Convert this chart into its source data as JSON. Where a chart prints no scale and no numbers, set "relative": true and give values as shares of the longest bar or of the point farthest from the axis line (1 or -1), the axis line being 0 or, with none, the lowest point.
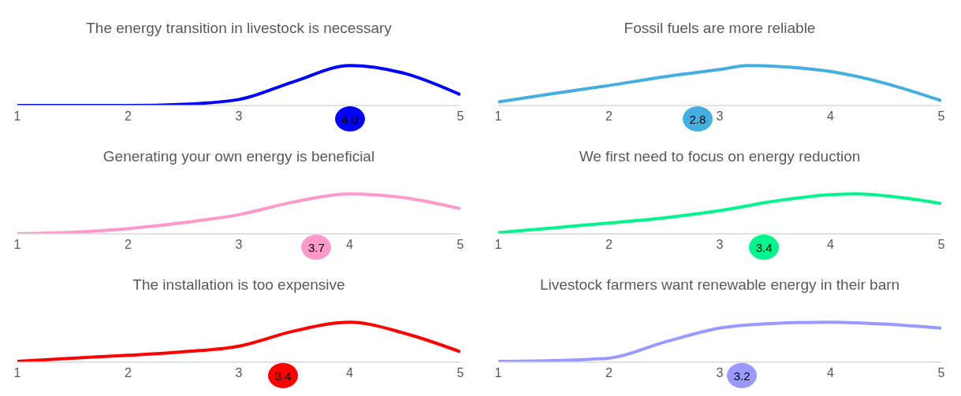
{
  "chart_data": [
    {
      "type": "line",
      "title": "The energy transition in livestock is necessary",
      "relative": true,
      "x": [
        1,
        1.5,
        2,
        2.5,
        3,
        3.5,
        4,
        4.5,
        5
      ],
      "xlim": [
        1,
        5
      ],
      "xticks": [
        1,
        2,
        3,
        5
      ],
      "marker": "none",
      "series": [
        {
          "color": "#0000ff",
          "values": [
            0,
            0,
            0,
            0.03,
            0.15,
            0.6,
            1,
            0.8,
            0.27
          ]
        }
      ],
      "annotations": [
        {
          "text": "4.0",
          "x": 4.0
        }
      ]
    },
    {
      "type": "line",
      "title": "Fossil fuels are more reliable",
      "relative": true,
      "x": [
        1,
        1.5,
        2,
        2.5,
        3,
        3.25,
        3.5,
        4,
        4.5,
        5
      ],
      "xlim": [
        1,
        5
      ],
      "xticks": [
        1,
        2,
        3,
        4,
        5
      ],
      "marker": "none",
      "series": [
        {
          "color": "#45aee0",
          "values": [
            0.09,
            0.3,
            0.5,
            0.72,
            0.9,
            1,
            0.98,
            0.85,
            0.55,
            0.12
          ]
        }
      ],
      "annotations": [
        {
          "text": "2.8",
          "x": 2.8
        }
      ]
    },
    {
      "type": "line",
      "title": "Generating your own energy is beneficial",
      "relative": true,
      "x": [
        1,
        1.5,
        2,
        2.5,
        3,
        3.5,
        4,
        4.5,
        5
      ],
      "xlim": [
        1,
        5
      ],
      "xticks": [
        1,
        2,
        3,
        4,
        5
      ],
      "marker": "none",
      "series": [
        {
          "color": "#ff99cc",
          "values": [
            0,
            0.04,
            0.13,
            0.28,
            0.48,
            0.8,
            1,
            0.9,
            0.63
          ]
        }
      ],
      "annotations": [
        {
          "text": "3.7",
          "x": 3.7
        }
      ]
    },
    {
      "type": "line",
      "title": "We first need to focus on energy reduction",
      "relative": true,
      "x": [
        1,
        1.5,
        2,
        2.5,
        3,
        3.5,
        4,
        4.25,
        4.5,
        5
      ],
      "xlim": [
        1,
        5
      ],
      "xticks": [
        1,
        2,
        3,
        4,
        5
      ],
      "marker": "none",
      "series": [
        {
          "color": "#00f58c",
          "values": [
            0.03,
            0.15,
            0.27,
            0.4,
            0.58,
            0.82,
            0.98,
            1,
            0.95,
            0.76
          ]
        }
      ],
      "annotations": [
        {
          "text": "3.4",
          "x": 3.4
        }
      ]
    },
    {
      "type": "line",
      "title": "The installation is too expensive",
      "relative": true,
      "x": [
        1,
        1.5,
        2,
        2.5,
        3,
        3.5,
        4,
        4.5,
        5
      ],
      "xlim": [
        1,
        5
      ],
      "xticks": [
        1,
        2,
        3,
        4,
        5
      ],
      "marker": "none",
      "series": [
        {
          "color": "#ff0000",
          "values": [
            0.02,
            0.1,
            0.17,
            0.26,
            0.4,
            0.78,
            1,
            0.72,
            0.26
          ]
        }
      ],
      "annotations": [
        {
          "text": "3.4",
          "x": 3.4
        }
      ]
    },
    {
      "type": "line",
      "title": "Livestock farmers want renewable energy in their barn",
      "relative": true,
      "x": [
        1,
        1.5,
        2,
        2.5,
        3,
        3.5,
        4,
        4.5,
        5
      ],
      "xlim": [
        1,
        5
      ],
      "xticks": [
        1,
        2,
        3,
        4,
        5
      ],
      "marker": "none",
      "series": [
        {
          "color": "#9999ff",
          "values": [
            0.02,
            0.04,
            0.1,
            0.5,
            0.85,
            0.97,
            1,
            0.95,
            0.85
          ]
        }
      ],
      "annotations": [
        {
          "text": "3.2",
          "x": 3.2
        }
      ]
    }
  ]
}
